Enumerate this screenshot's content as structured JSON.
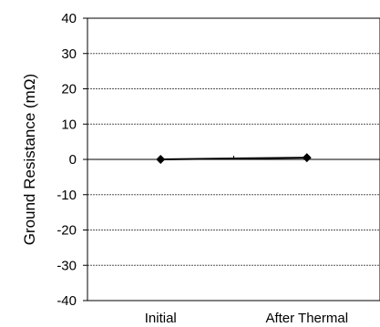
{
  "chart_data": {
    "type": "line",
    "title": "",
    "xlabel": "",
    "ylabel": "Ground Resistance (mΩ)",
    "categories": [
      "Initial",
      "After Thermal"
    ],
    "series": [
      {
        "values": [
          0,
          0.5
        ],
        "color": "#000000",
        "marker": "diamond"
      }
    ],
    "ylim": [
      -40,
      40
    ],
    "yticks": [
      40,
      30,
      20,
      10,
      0,
      -10,
      -20,
      -30,
      -40
    ],
    "grid": true,
    "grid_style": "dashed",
    "legend": "none"
  }
}
